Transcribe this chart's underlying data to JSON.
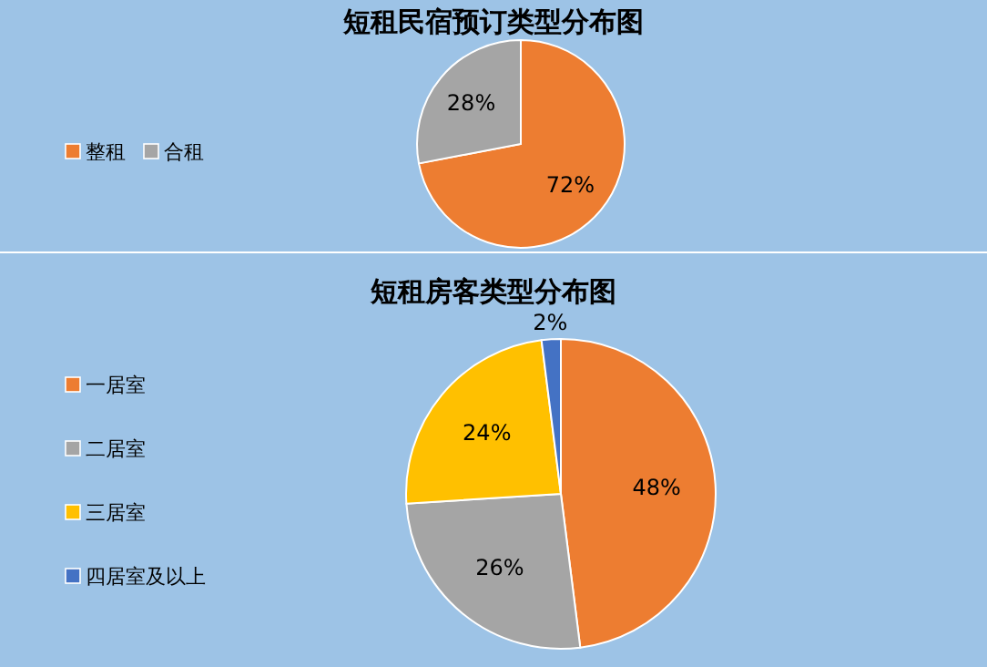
{
  "chart_data": [
    {
      "type": "pie",
      "title": "短租民宿预订类型分布图",
      "categories": [
        "整租",
        "合租"
      ],
      "values": [
        72,
        28
      ],
      "colors": [
        "#ed7d31",
        "#a5a5a5"
      ],
      "value_labels": [
        "72%",
        "28%"
      ],
      "legend": "left"
    },
    {
      "type": "pie",
      "title": "短租房客类型分布图",
      "categories": [
        "一居室",
        "二居室",
        "三居室",
        "四居室及以上"
      ],
      "values": [
        48,
        26,
        24,
        2
      ],
      "colors": [
        "#ed7d31",
        "#a5a5a5",
        "#ffc000",
        "#4472c4"
      ],
      "value_labels": [
        "48%",
        "26%",
        "24%",
        "2%"
      ],
      "legend": "left"
    }
  ]
}
